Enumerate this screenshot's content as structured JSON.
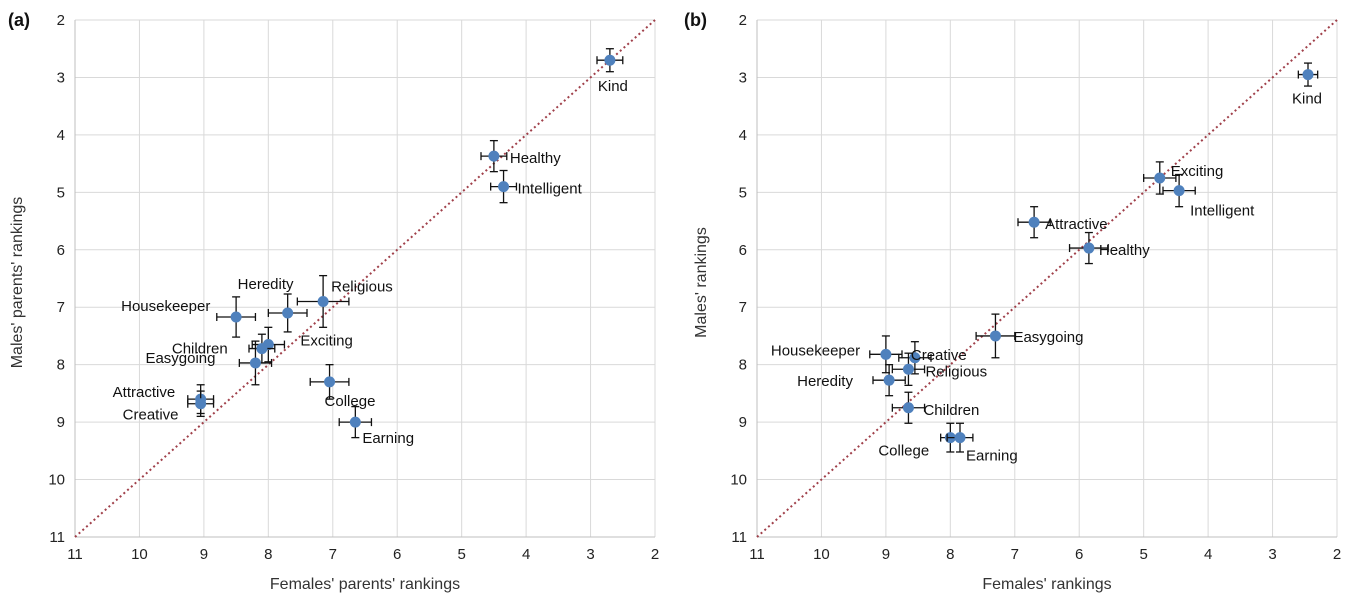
{
  "chart_data": [
    {
      "type": "scatter",
      "panel_label": "(a)",
      "xlabel": "Females' parents' rankings",
      "ylabel": "Males' parents' rankings",
      "xlim": [
        11,
        2
      ],
      "ylim": [
        11,
        2
      ],
      "x_reversed": true,
      "y_reversed": true,
      "ticks": [
        2,
        3,
        4,
        5,
        6,
        7,
        8,
        9,
        10,
        11
      ],
      "grid": true,
      "reference_line": "y = x (dotted)",
      "colors": {
        "marker": "#4f81bd",
        "reference_line": "#a0404a",
        "grid": "#d9d9d9"
      },
      "points": [
        {
          "label": "Kind",
          "x": 2.7,
          "y": 2.7,
          "xerr": 0.2,
          "yerr": 0.2
        },
        {
          "label": "Healthy",
          "x": 4.5,
          "y": 4.37,
          "xerr": 0.2,
          "yerr": 0.27
        },
        {
          "label": "Intelligent",
          "x": 4.35,
          "y": 4.9,
          "xerr": 0.2,
          "yerr": 0.28
        },
        {
          "label": "Religious",
          "x": 7.15,
          "y": 6.9,
          "xerr": 0.4,
          "yerr": 0.45
        },
        {
          "label": "Heredity",
          "x": 7.7,
          "y": 7.1,
          "xerr": 0.3,
          "yerr": 0.33
        },
        {
          "label": "Housekeeper",
          "x": 8.5,
          "y": 7.17,
          "xerr": 0.3,
          "yerr": 0.35
        },
        {
          "label": "Exciting",
          "x": 8.0,
          "y": 7.65,
          "xerr": 0.25,
          "yerr": 0.3
        },
        {
          "label": "Children",
          "x": 8.1,
          "y": 7.72,
          "xerr": 0.2,
          "yerr": 0.25
        },
        {
          "label": "Easygoing",
          "x": 8.2,
          "y": 7.97,
          "xerr": 0.25,
          "yerr": 0.38
        },
        {
          "label": "College",
          "x": 7.05,
          "y": 8.3,
          "xerr": 0.3,
          "yerr": 0.3
        },
        {
          "label": "Attractive",
          "x": 9.05,
          "y": 8.6,
          "xerr": 0.2,
          "yerr": 0.25
        },
        {
          "label": "Creative",
          "x": 9.05,
          "y": 8.68,
          "xerr": 0.2,
          "yerr": 0.22
        },
        {
          "label": "Earning",
          "x": 6.65,
          "y": 9.0,
          "xerr": 0.25,
          "yerr": 0.27
        }
      ]
    },
    {
      "type": "scatter",
      "panel_label": "(b)",
      "xlabel": "Females' rankings",
      "ylabel": "Males' rankings",
      "xlim": [
        11,
        2
      ],
      "ylim": [
        11,
        2
      ],
      "x_reversed": true,
      "y_reversed": true,
      "ticks": [
        2,
        3,
        4,
        5,
        6,
        7,
        8,
        9,
        10,
        11
      ],
      "grid": true,
      "reference_line": "y = x (dotted)",
      "colors": {
        "marker": "#4f81bd",
        "reference_line": "#a0404a",
        "grid": "#d9d9d9"
      },
      "points": [
        {
          "label": "Kind",
          "x": 2.45,
          "y": 2.95,
          "xerr": 0.15,
          "yerr": 0.2
        },
        {
          "label": "Exciting",
          "x": 4.75,
          "y": 4.75,
          "xerr": 0.25,
          "yerr": 0.28
        },
        {
          "label": "Intelligent",
          "x": 4.45,
          "y": 4.97,
          "xerr": 0.25,
          "yerr": 0.28
        },
        {
          "label": "Attractive",
          "x": 6.7,
          "y": 5.52,
          "xerr": 0.25,
          "yerr": 0.27
        },
        {
          "label": "Healthy",
          "x": 5.85,
          "y": 5.97,
          "xerr": 0.3,
          "yerr": 0.27
        },
        {
          "label": "Easygoing",
          "x": 7.3,
          "y": 7.5,
          "xerr": 0.3,
          "yerr": 0.38
        },
        {
          "label": "Housekeeper",
          "x": 9.0,
          "y": 7.82,
          "xerr": 0.25,
          "yerr": 0.32
        },
        {
          "label": "Creative",
          "x": 8.55,
          "y": 7.88,
          "xerr": 0.25,
          "yerr": 0.28
        },
        {
          "label": "Religious",
          "x": 8.65,
          "y": 8.08,
          "xerr": 0.25,
          "yerr": 0.28
        },
        {
          "label": "Heredity",
          "x": 8.95,
          "y": 8.27,
          "xerr": 0.25,
          "yerr": 0.27
        },
        {
          "label": "Children",
          "x": 8.65,
          "y": 8.75,
          "xerr": 0.25,
          "yerr": 0.27
        },
        {
          "label": "College",
          "x": 8.0,
          "y": 9.27,
          "xerr": 0.15,
          "yerr": 0.25
        },
        {
          "label": "Earning",
          "x": 7.85,
          "y": 9.27,
          "xerr": 0.2,
          "yerr": 0.25
        }
      ]
    }
  ]
}
